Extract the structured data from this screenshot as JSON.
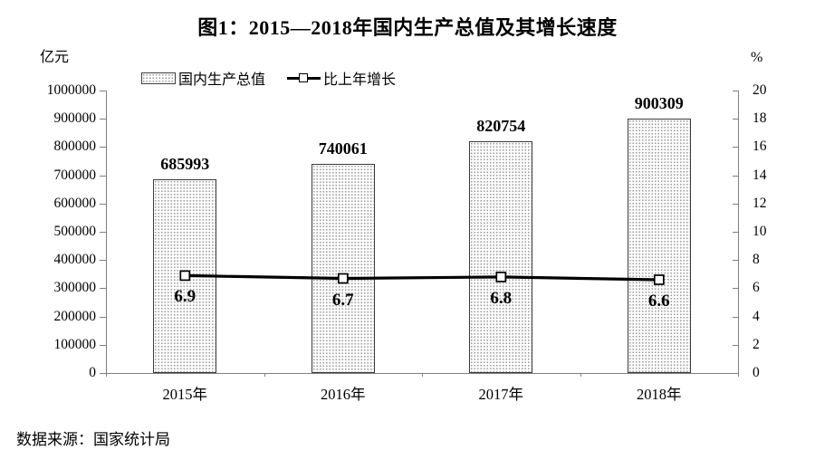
{
  "title": "图1：2015—2018年国内生产总值及其增长速度",
  "source": "数据来源：国家统计局",
  "legend": {
    "gdp_label": "国内生产总值",
    "growth_label": "比上年增长"
  },
  "chart_data": {
    "type": "bar",
    "subtype": "bar-line-dual-axis",
    "title": "图1：2015—2018年国内生产总值及其增长速度",
    "categories": [
      "2015年",
      "2016年",
      "2017年",
      "2018年"
    ],
    "series": [
      {
        "name": "国内生产总值",
        "type": "bar",
        "axis": "left",
        "values": [
          685993,
          740061,
          820754,
          900309
        ],
        "value_labels": [
          "685993",
          "740061",
          "820754",
          "900309"
        ]
      },
      {
        "name": "比上年增长",
        "type": "line",
        "axis": "right",
        "values": [
          6.9,
          6.7,
          6.8,
          6.6
        ],
        "value_labels": [
          "6.9",
          "6.7",
          "6.8",
          "6.6"
        ]
      }
    ],
    "left_axis": {
      "unit": "亿元",
      "min": 0,
      "max": 1000000,
      "step": 100000,
      "tick_labels": [
        "0",
        "100000",
        "200000",
        "300000",
        "400000",
        "500000",
        "600000",
        "700000",
        "800000",
        "900000",
        "1000000"
      ]
    },
    "right_axis": {
      "unit": "%",
      "min": 0,
      "max": 20,
      "step": 2,
      "tick_labels": [
        "0",
        "2",
        "4",
        "6",
        "8",
        "10",
        "12",
        "14",
        "16",
        "18",
        "20"
      ]
    },
    "legend_position": "top",
    "grid": false,
    "colors": {
      "text": "#000000",
      "axis": "#7f7f7f",
      "bar_border": "#3a3a3a",
      "bar_dot": "#9a9a9a",
      "line": "#000000",
      "marker_fill": "#ffffff"
    }
  }
}
